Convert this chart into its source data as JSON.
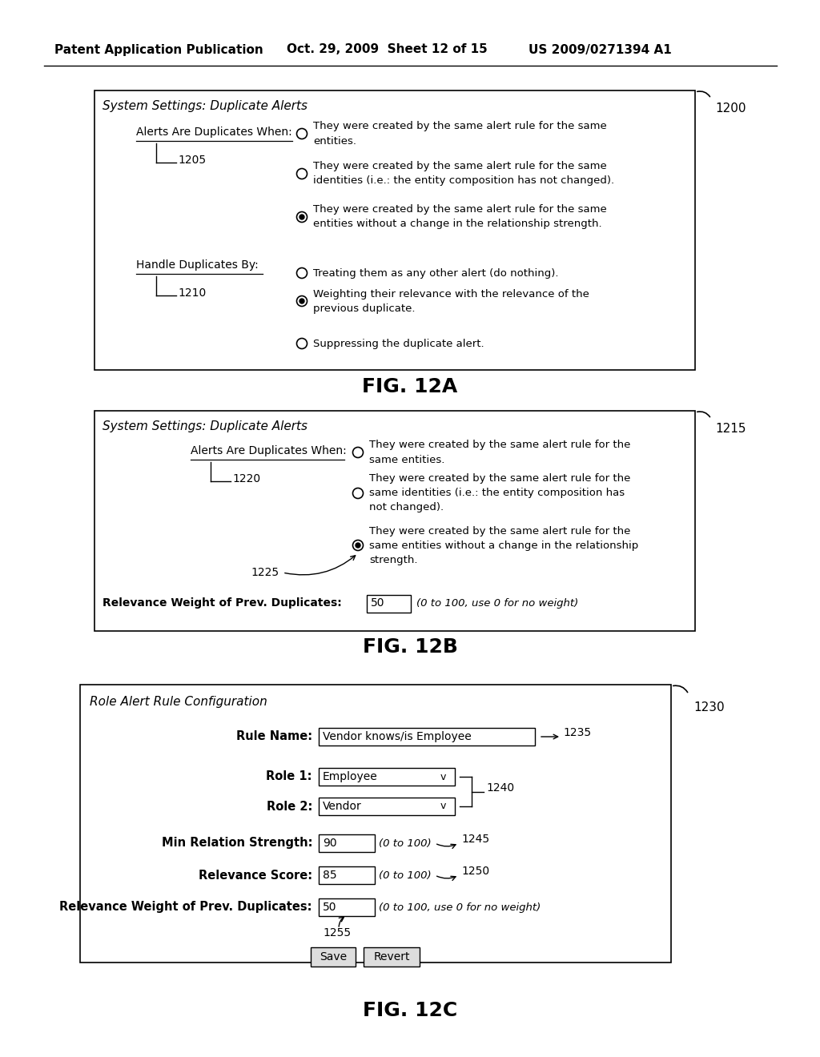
{
  "bg_color": "#ffffff",
  "header_left": "Patent Application Publication",
  "header_mid": "Oct. 29, 2009  Sheet 12 of 15",
  "header_right": "US 2009/0271394 A1",
  "fig12a_label": "FIG. 12A",
  "fig12b_label": "FIG. 12B",
  "fig12c_label": "FIG. 12C",
  "label_1200": "1200",
  "label_1205": "1205",
  "label_1210": "1210",
  "label_1215": "1215",
  "label_1220": "1220",
  "label_1225": "1225",
  "label_1230": "1230",
  "label_1235": "1235",
  "label_1240": "1240",
  "label_1245": "1245",
  "label_1250": "1250",
  "label_1255": "1255",
  "title_12a": "System Settings: Duplicate Alerts",
  "title_12b": "System Settings: Duplicate Alerts",
  "title_12c": "Role Alert Rule Configuration",
  "label_when": "Alerts Are Duplicates When:",
  "label_handle": "Handle Duplicates By:",
  "opt1a": "They were created by the same alert rule for the same\nentities.",
  "opt2a": "They were created by the same alert rule for the same\nidentities (i.e.: the entity composition has not changed).",
  "opt3a": "They were created by the same alert rule for the same\nentities without a change in the relationship strength.",
  "opt4a": "Treating them as any other alert (do nothing).",
  "opt5a": "Weighting their relevance with the relevance of the\nprevious duplicate.",
  "opt6a": "Suppressing the duplicate alert.",
  "opt1b": "They were created by the same alert rule for the\nsame entities.",
  "opt2b": "They were created by the same alert rule for the\nsame identities (i.e.: the entity composition has\nnot changed).",
  "opt3b": "They were created by the same alert rule for the\nsame entities without a change in the relationship\nstrength.",
  "rel_weight_label": "Relevance Weight of Prev. Duplicates:",
  "rel_weight_val": "50",
  "rel_weight_hint": "(0 to 100, use 0 for no weight)",
  "rule_name_label": "Rule Name:",
  "rule_name_val": "Vendor knows/is Employee",
  "role1_label": "Role 1:",
  "role1_val": "Employee",
  "role2_label": "Role 2:",
  "role2_val": "Vendor",
  "min_rel_label": "Min Relation Strength:",
  "min_rel_val": "90",
  "rel_score_label": "Relevance Score:",
  "rel_score_val": "85",
  "range_hint": "(0 to 100)",
  "save_btn": "Save",
  "revert_btn": "Revert"
}
